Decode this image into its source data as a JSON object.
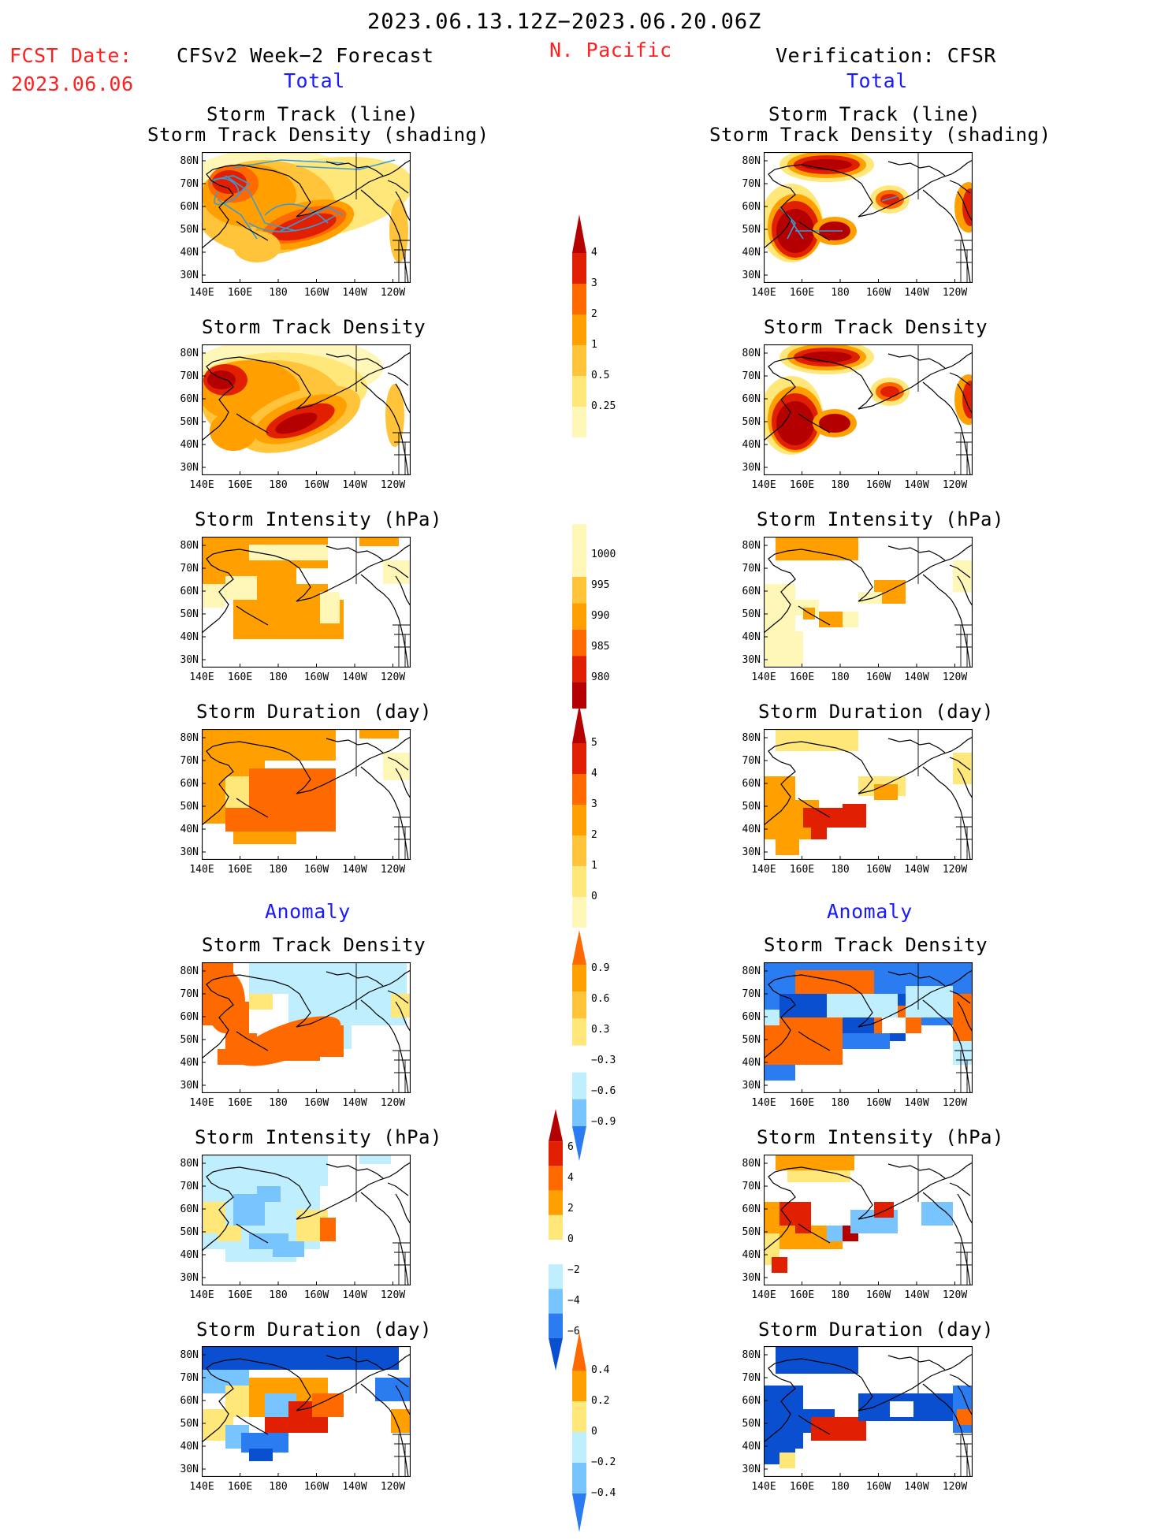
{
  "header": {
    "date_range": "2023.06.13.12Z−2023.06.20.06Z",
    "fcst_label": "FCST Date:",
    "fcst_date": "2023.06.06",
    "forecast_title": "CFSv2 Week−2 Forecast",
    "region": "N. Pacific",
    "verification_title": "Verification: CFSR",
    "total_left": "Total",
    "total_right": "Total"
  },
  "sections": {
    "anomaly_left": "Anomaly",
    "anomaly_right": "Anomaly"
  },
  "panel_titles": {
    "track_line": "Storm Track (line)",
    "track_density_shading": "Storm Track Density (shading)",
    "track_density": "Storm Track Density",
    "intensity": "Storm Intensity (hPa)",
    "duration": "Storm Duration (day)"
  },
  "axes": {
    "lat_labels": [
      "80N",
      "70N",
      "60N",
      "50N",
      "40N",
      "30N"
    ],
    "lon_labels": [
      "140E",
      "160E",
      "180",
      "160W",
      "140W",
      "120W"
    ]
  },
  "colorbars": {
    "density": [
      "4",
      "3",
      "2",
      "1",
      "0.5",
      "0.25"
    ],
    "intensity": [
      "1000",
      "995",
      "990",
      "985",
      "980"
    ],
    "duration": [
      "5",
      "4",
      "3",
      "2",
      "1",
      "0"
    ],
    "density_anom": [
      "0.9",
      "0.6",
      "0.3",
      "−0.3",
      "−0.6",
      "−0.9"
    ],
    "intensity_anom": [
      "6",
      "4",
      "2",
      "0",
      "−2",
      "−4",
      "−6"
    ],
    "duration_anom": [
      "0.4",
      "0.2",
      "0",
      "−0.2",
      "−0.4"
    ]
  },
  "colors": {
    "yellow_light": "#fff7b8",
    "yellow": "#ffe77a",
    "orange_light": "#ffc43a",
    "orange": "#ffa000",
    "orange_dark": "#ff6a00",
    "red": "#e02000",
    "red_dark": "#b40000",
    "cyan_light": "#bfefff",
    "blue_light": "#78c4ff",
    "blue": "#2a7cf0",
    "blue_dark": "#0a4fd0",
    "track_line": "#3a9ad8",
    "title_red": "#ff2020",
    "title_blue": "#1a1aff"
  }
}
